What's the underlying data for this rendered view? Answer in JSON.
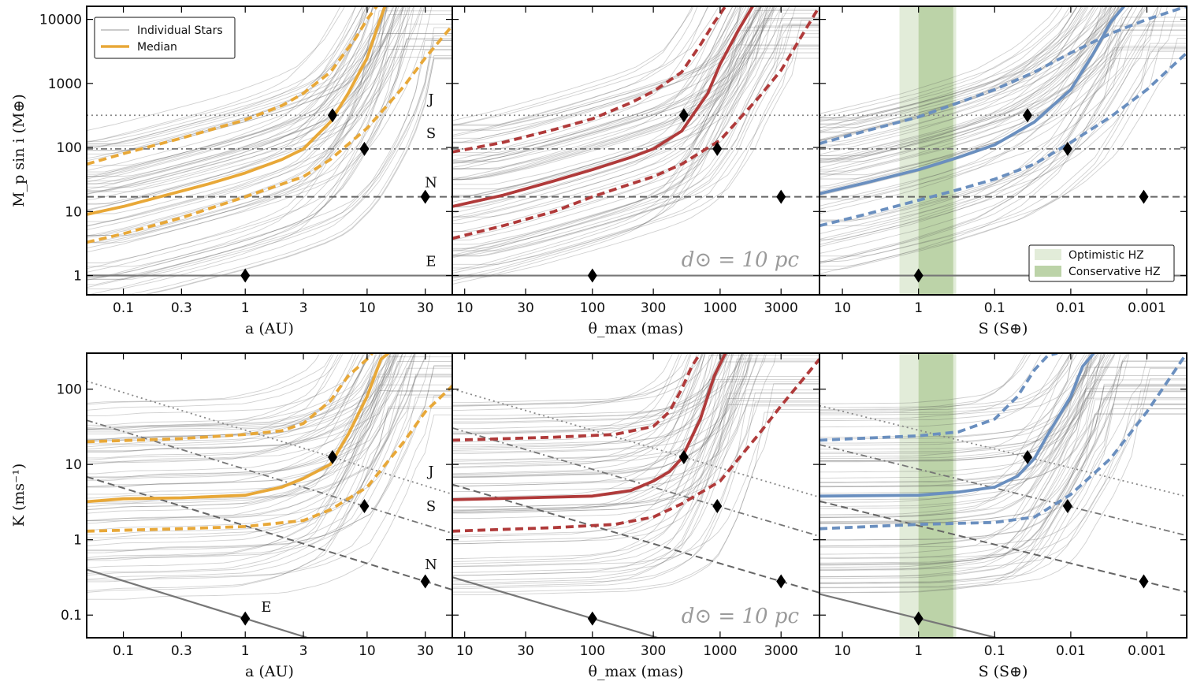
{
  "figure": {
    "row_ylabels": [
      "M_p sin i (M⊕)",
      "K (ms⁻¹)"
    ],
    "distance_label": "d⊙ = 10 pc"
  },
  "chart_data": [
    {
      "type": "line",
      "panel": "top-left",
      "xlabel": "a (AU)",
      "ylabel": "M_p sin i (M⊕)",
      "xscale": "log",
      "yscale": "log",
      "xlim": [
        0.05,
        50
      ],
      "ylim": [
        0.5,
        16000
      ],
      "xticks": [
        0.1,
        0.3,
        1,
        3,
        10,
        30
      ],
      "xticklabels": [
        "0.1",
        "0.3",
        "1",
        "3",
        "10",
        "30"
      ],
      "yticks": [
        1,
        10,
        100,
        1000,
        10000
      ],
      "yticklabels": [
        "1",
        "10",
        "100",
        "1000",
        "10000"
      ],
      "median_color": "#e8a838",
      "series": [
        {
          "name": "Median",
          "x": [
            0.05,
            0.1,
            0.2,
            0.5,
            1,
            2,
            3,
            5,
            7,
            10,
            12,
            14
          ],
          "values": [
            9,
            12,
            17,
            27,
            40,
            65,
            95,
            250,
            700,
            2500,
            7000,
            16000
          ]
        },
        {
          "name": "upper",
          "x": [
            0.05,
            0.1,
            0.3,
            1,
            2,
            3,
            5,
            8,
            10,
            12
          ],
          "values": [
            55,
            80,
            140,
            270,
            450,
            700,
            1500,
            5000,
            10000,
            16000
          ]
        },
        {
          "name": "lower",
          "x": [
            0.05,
            0.1,
            0.3,
            1,
            3,
            5,
            10,
            20,
            30,
            50
          ],
          "values": [
            3.3,
            4.5,
            8,
            17,
            35,
            65,
            200,
            900,
            2500,
            8000
          ]
        }
      ],
      "legend": [
        "Individual Stars",
        "Median"
      ],
      "planets": [
        {
          "name": "J",
          "x": 5.2,
          "y": 318
        },
        {
          "name": "S",
          "x": 9.5,
          "y": 95
        },
        {
          "name": "N",
          "x": 30,
          "y": 17
        },
        {
          "name": "E",
          "x": 1,
          "y": 1
        }
      ],
      "planet_lines": {
        "J": 318,
        "S": 95,
        "N": 17,
        "E": 1
      }
    },
    {
      "type": "line",
      "panel": "top-middle",
      "xlabel": "θ_max (mas)",
      "ylabel": "M_p sin i (M⊕)",
      "xscale": "log",
      "yscale": "log",
      "xlim": [
        8,
        6000
      ],
      "ylim": [
        0.5,
        16000
      ],
      "xticks": [
        10,
        30,
        100,
        300,
        1000,
        3000
      ],
      "xticklabels": [
        "10",
        "30",
        "100",
        "300",
        "1000",
        "3000"
      ],
      "median_color": "#b03a3a",
      "series": [
        {
          "name": "Median",
          "x": [
            8,
            20,
            50,
            100,
            200,
            300,
            500,
            800,
            1000,
            1400,
            1800
          ],
          "values": [
            12,
            18,
            30,
            45,
            70,
            95,
            180,
            700,
            2000,
            7000,
            16000
          ]
        },
        {
          "name": "upper",
          "x": [
            8,
            20,
            50,
            100,
            200,
            300,
            500,
            700,
            900,
            1100
          ],
          "values": [
            85,
            120,
            190,
            280,
            500,
            750,
            1500,
            4000,
            9000,
            16000
          ]
        },
        {
          "name": "lower",
          "x": [
            8,
            20,
            50,
            100,
            200,
            300,
            500,
            1000,
            2000,
            3000,
            6000
          ],
          "values": [
            3.8,
            6,
            10,
            17,
            27,
            35,
            55,
            130,
            600,
            1600,
            16000
          ]
        }
      ],
      "planets": [
        {
          "name": "J",
          "x": 520,
          "y": 318
        },
        {
          "name": "S",
          "x": 950,
          "y": 95
        },
        {
          "name": "N",
          "x": 3000,
          "y": 17
        },
        {
          "name": "E",
          "x": 100,
          "y": 1
        }
      ],
      "planet_lines": {
        "J": 318,
        "S": 95,
        "N": 17,
        "E": 1
      }
    },
    {
      "type": "line",
      "panel": "top-right",
      "xlabel": "S (S⊕)",
      "ylabel": "M_p sin i (M⊕)",
      "xscale": "log",
      "yscale": "log",
      "x_inverted": true,
      "xlim": [
        20,
        0.0003
      ],
      "ylim": [
        0.5,
        16000
      ],
      "xticks": [
        10,
        1,
        0.1,
        0.01,
        0.001
      ],
      "xticklabels": [
        "10",
        "1",
        "0.1",
        "0.01",
        "0.001"
      ],
      "median_color": "#6a8fbf",
      "series": [
        {
          "name": "Median",
          "x": [
            20,
            5,
            1,
            0.3,
            0.1,
            0.03,
            0.01,
            0.005,
            0.003,
            0.002
          ],
          "values": [
            19,
            28,
            45,
            70,
            110,
            250,
            800,
            3000,
            9000,
            16000
          ]
        },
        {
          "name": "upper",
          "x": [
            20,
            5,
            1,
            0.3,
            0.1,
            0.03,
            0.01,
            0.003,
            0.001,
            0.0003
          ],
          "values": [
            115,
            180,
            300,
            500,
            800,
            1500,
            3000,
            6000,
            10000,
            16000
          ]
        },
        {
          "name": "lower",
          "x": [
            20,
            5,
            1,
            0.3,
            0.1,
            0.03,
            0.01,
            0.003,
            0.001,
            0.0003
          ],
          "values": [
            6,
            9,
            15,
            22,
            32,
            55,
            120,
            300,
            800,
            3000
          ]
        }
      ],
      "hz_bands": {
        "optimistic": [
          1.78,
          0.32
        ],
        "conservative": [
          1.0,
          0.35
        ]
      },
      "legend": [
        "Optimistic HZ",
        "Conservative HZ"
      ],
      "planets": [
        {
          "name": "J",
          "x": 0.037,
          "y": 318
        },
        {
          "name": "S",
          "x": 0.011,
          "y": 95
        },
        {
          "name": "N",
          "x": 0.0011,
          "y": 17
        },
        {
          "name": "E",
          "x": 1,
          "y": 1
        }
      ],
      "planet_lines": {
        "J": 318,
        "S": 95,
        "N": 17,
        "E": 1
      }
    },
    {
      "type": "line",
      "panel": "bottom-left",
      "xlabel": "a (AU)",
      "ylabel": "K (ms⁻¹)",
      "xscale": "log",
      "yscale": "log",
      "xlim": [
        0.05,
        50
      ],
      "ylim": [
        0.05,
        300
      ],
      "xticks": [
        0.1,
        0.3,
        1,
        3,
        10,
        30
      ],
      "xticklabels": [
        "0.1",
        "0.3",
        "1",
        "3",
        "10",
        "30"
      ],
      "yticks": [
        0.1,
        1,
        10,
        100
      ],
      "yticklabels": [
        "0.1",
        "1",
        "10",
        "100"
      ],
      "median_color": "#e8a838",
      "series": [
        {
          "name": "Median",
          "x": [
            0.05,
            0.1,
            0.3,
            1,
            2,
            3,
            5,
            7,
            10,
            13,
            15
          ],
          "values": [
            3.2,
            3.5,
            3.6,
            3.9,
            5,
            6.5,
            10,
            25,
            80,
            250,
            300
          ]
        },
        {
          "name": "upper",
          "x": [
            0.05,
            0.3,
            1,
            2,
            3,
            5,
            7,
            10,
            11
          ],
          "values": [
            20,
            22,
            25,
            28,
            35,
            70,
            150,
            250,
            300
          ]
        },
        {
          "name": "lower",
          "x": [
            0.05,
            0.3,
            1,
            3,
            5,
            10,
            20,
            30,
            50
          ],
          "values": [
            1.3,
            1.4,
            1.5,
            1.8,
            2.5,
            5,
            20,
            50,
            110
          ]
        }
      ],
      "planets": [
        {
          "name": "J",
          "x": 5.2,
          "y": 12.5
        },
        {
          "name": "S",
          "x": 9.5,
          "y": 2.8
        },
        {
          "name": "N",
          "x": 30,
          "y": 0.28
        },
        {
          "name": "E",
          "x": 1,
          "y": 0.09
        }
      ],
      "planet_lines": {
        "J": 12.5,
        "S": 2.8,
        "N": 0.28,
        "E": 0.09
      }
    },
    {
      "type": "line",
      "panel": "bottom-middle",
      "xlabel": "θ_max (mas)",
      "ylabel": "K (ms⁻¹)",
      "xscale": "log",
      "yscale": "log",
      "xlim": [
        8,
        6000
      ],
      "ylim": [
        0.05,
        300
      ],
      "xticks": [
        10,
        30,
        100,
        300,
        1000,
        3000
      ],
      "xticklabels": [
        "10",
        "30",
        "100",
        "300",
        "1000",
        "3000"
      ],
      "median_color": "#b03a3a",
      "series": [
        {
          "name": "Median",
          "x": [
            8,
            30,
            100,
            200,
            300,
            400,
            500,
            700,
            900,
            1100
          ],
          "values": [
            3.4,
            3.6,
            3.8,
            4.5,
            6,
            8,
            12,
            40,
            150,
            300
          ]
        },
        {
          "name": "upper",
          "x": [
            8,
            50,
            150,
            300,
            400,
            500,
            600,
            700
          ],
          "values": [
            21,
            23,
            25,
            32,
            50,
            100,
            200,
            300
          ]
        },
        {
          "name": "lower",
          "x": [
            8,
            50,
            150,
            300,
            500,
            1000,
            2000,
            3000,
            6000
          ],
          "values": [
            1.3,
            1.45,
            1.6,
            2,
            3,
            6,
            25,
            60,
            250
          ]
        }
      ],
      "planets": [
        {
          "name": "J",
          "x": 520,
          "y": 12.5
        },
        {
          "name": "S",
          "x": 950,
          "y": 2.8
        },
        {
          "name": "N",
          "x": 3000,
          "y": 0.28
        },
        {
          "name": "E",
          "x": 100,
          "y": 0.09
        }
      ],
      "planet_lines": {
        "J": 12.5,
        "S": 2.8,
        "N": 0.28,
        "E": 0.09
      }
    },
    {
      "type": "line",
      "panel": "bottom-right",
      "xlabel": "S (S⊕)",
      "ylabel": "K (ms⁻¹)",
      "xscale": "log",
      "yscale": "log",
      "x_inverted": true,
      "xlim": [
        20,
        0.0003
      ],
      "ylim": [
        0.05,
        300
      ],
      "xticks": [
        10,
        1,
        0.1,
        0.01,
        0.001
      ],
      "xticklabels": [
        "10",
        "1",
        "0.1",
        "0.01",
        "0.001"
      ],
      "median_color": "#6a8fbf",
      "series": [
        {
          "name": "Median",
          "x": [
            20,
            1,
            0.3,
            0.1,
            0.05,
            0.03,
            0.02,
            0.01,
            0.007,
            0.005
          ],
          "values": [
            3.8,
            3.9,
            4.3,
            5,
            7,
            12,
            25,
            80,
            200,
            300
          ]
        },
        {
          "name": "upper",
          "x": [
            20,
            1,
            0.3,
            0.1,
            0.05,
            0.03,
            0.02,
            0.015
          ],
          "values": [
            21,
            24,
            27,
            40,
            80,
            180,
            280,
            300
          ]
        },
        {
          "name": "lower",
          "x": [
            20,
            1,
            0.1,
            0.03,
            0.01,
            0.003,
            0.001,
            0.0003
          ],
          "values": [
            1.4,
            1.6,
            1.7,
            2,
            4,
            12,
            50,
            300
          ]
        }
      ],
      "hz_bands": {
        "optimistic": [
          1.78,
          0.32
        ],
        "conservative": [
          1.0,
          0.35
        ]
      },
      "planets": [
        {
          "name": "J",
          "x": 0.037,
          "y": 12.5
        },
        {
          "name": "S",
          "x": 0.011,
          "y": 2.8
        },
        {
          "name": "N",
          "x": 0.0011,
          "y": 0.28
        },
        {
          "name": "E",
          "x": 1,
          "y": 0.09
        }
      ],
      "planet_lines": {
        "J": 12.5,
        "S": 2.8,
        "N": 0.28,
        "E": 0.09
      }
    }
  ]
}
